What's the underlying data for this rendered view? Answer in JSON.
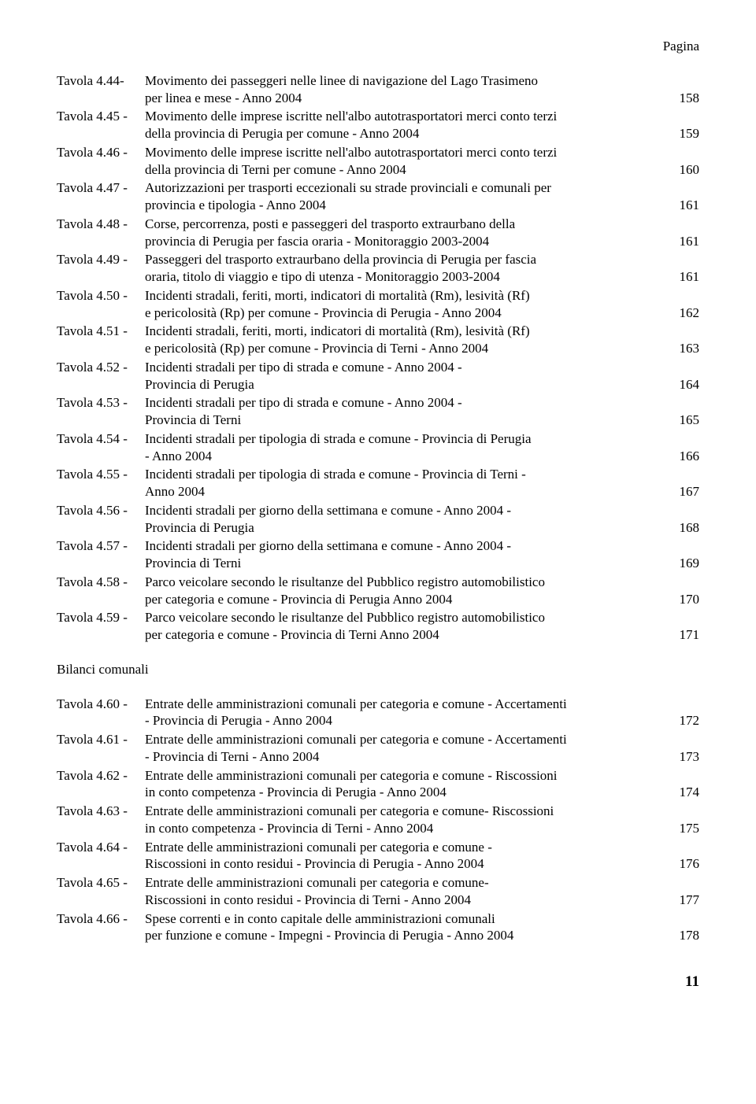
{
  "header_label": "Pagina",
  "page_number": "11",
  "section2_heading": "Bilanci comunali",
  "entries1": [
    {
      "label": "Tavola 4.44-",
      "lines": [
        {
          "text": "Movimento dei passeggeri nelle linee di navigazione del Lago Trasimeno"
        },
        {
          "text": "per linea e mese - Anno 2004",
          "page": "158"
        }
      ]
    },
    {
      "label": "Tavola 4.45 -",
      "lines": [
        {
          "text": "Movimento delle imprese iscritte nell'albo autotrasportatori merci conto terzi"
        },
        {
          "text": "della provincia di Perugia per comune - Anno 2004",
          "page": "159"
        }
      ]
    },
    {
      "label": "Tavola 4.46 -",
      "lines": [
        {
          "text": "Movimento delle imprese iscritte nell'albo autotrasportatori merci conto terzi"
        },
        {
          "text": "della provincia di Terni per comune - Anno 2004",
          "page": "160"
        }
      ]
    },
    {
      "label": "Tavola 4.47 -",
      "lines": [
        {
          "text": "Autorizzazioni per trasporti eccezionali su strade provinciali e comunali per"
        },
        {
          "text": "provincia e tipologia - Anno 2004",
          "page": "161"
        }
      ]
    },
    {
      "label": "Tavola 4.48 -",
      "lines": [
        {
          "text": "Corse, percorrenza, posti e passeggeri del trasporto extraurbano della"
        },
        {
          "text": "provincia di Perugia per fascia oraria - Monitoraggio 2003-2004",
          "page": "161"
        }
      ]
    },
    {
      "label": "Tavola 4.49 -",
      "lines": [
        {
          "text": "Passeggeri del trasporto extraurbano della provincia di Perugia per fascia"
        },
        {
          "text": "oraria, titolo di viaggio e tipo di utenza - Monitoraggio 2003-2004",
          "page": "161"
        }
      ]
    },
    {
      "label": "Tavola 4.50 -",
      "lines": [
        {
          "text": "Incidenti stradali, feriti, morti, indicatori di mortalità (Rm), lesività (Rf)"
        },
        {
          "text": "e pericolosità (Rp) per comune - Provincia di Perugia - Anno 2004",
          "page": "162"
        }
      ]
    },
    {
      "label": "Tavola 4.51 -",
      "lines": [
        {
          "text": "Incidenti stradali, feriti, morti, indicatori di mortalità (Rm), lesività (Rf)"
        },
        {
          "text": "e pericolosità (Rp) per comune - Provincia di Terni - Anno 2004",
          "page": "163"
        }
      ]
    },
    {
      "label": "Tavola 4.52 -",
      "lines": [
        {
          "text": "Incidenti stradali per tipo di strada e comune - Anno 2004 -"
        },
        {
          "text": "Provincia di Perugia",
          "page": "164"
        }
      ]
    },
    {
      "label": "Tavola 4.53 -",
      "lines": [
        {
          "text": "Incidenti stradali per tipo di strada e comune - Anno 2004 -"
        },
        {
          "text": "Provincia di Terni",
          "page": "165"
        }
      ]
    },
    {
      "label": "Tavola 4.54 -",
      "lines": [
        {
          "text": "Incidenti stradali per tipologia di strada e comune - Provincia di Perugia"
        },
        {
          "text": "- Anno 2004",
          "page": "166"
        }
      ]
    },
    {
      "label": "Tavola 4.55 -",
      "lines": [
        {
          "text": "Incidenti stradali per tipologia di strada e comune - Provincia di Terni -"
        },
        {
          "text": "Anno 2004",
          "page": "167"
        }
      ]
    },
    {
      "label": "Tavola 4.56 -",
      "lines": [
        {
          "text": "Incidenti stradali per giorno della settimana e comune - Anno 2004 -"
        },
        {
          "text": "Provincia di Perugia",
          "page": "168"
        }
      ]
    },
    {
      "label": "Tavola 4.57 -",
      "lines": [
        {
          "text": "Incidenti stradali per giorno della settimana e comune - Anno 2004 -"
        },
        {
          "text": "Provincia di Terni",
          "page": "169"
        }
      ]
    },
    {
      "label": "Tavola 4.58 -",
      "lines": [
        {
          "text": "Parco veicolare secondo le risultanze del Pubblico registro automobilistico"
        },
        {
          "text": "per categoria e comune - Provincia di Perugia Anno 2004",
          "page": "170"
        }
      ]
    },
    {
      "label": "Tavola 4.59 -",
      "lines": [
        {
          "text": "Parco veicolare secondo le risultanze del Pubblico registro automobilistico"
        },
        {
          "text": "per categoria e comune - Provincia di Terni Anno 2004",
          "page": "171"
        }
      ]
    }
  ],
  "entries2": [
    {
      "label": "Tavola 4.60 -",
      "lines": [
        {
          "text": "Entrate delle amministrazioni comunali per categoria e comune - Accertamenti"
        },
        {
          "text": "- Provincia di Perugia - Anno 2004",
          "page": "172"
        }
      ]
    },
    {
      "label": "Tavola 4.61 -",
      "lines": [
        {
          "text": "Entrate delle amministrazioni comunali per categoria e comune - Accertamenti"
        },
        {
          "text": "- Provincia di Terni - Anno 2004",
          "page": "173"
        }
      ]
    },
    {
      "label": "Tavola 4.62 -",
      "lines": [
        {
          "text": "Entrate delle amministrazioni comunali per categoria e comune - Riscossioni"
        },
        {
          "text": "in conto competenza - Provincia di Perugia - Anno 2004",
          "page": "174"
        }
      ]
    },
    {
      "label": "Tavola 4.63 -",
      "lines": [
        {
          "text": "Entrate delle amministrazioni comunali per categoria e comune- Riscossioni"
        },
        {
          "text": "in conto competenza - Provincia di Terni - Anno 2004",
          "page": "175"
        }
      ]
    },
    {
      "label": "Tavola 4.64 -",
      "lines": [
        {
          "text": "Entrate delle amministrazioni comunali per categoria e comune -"
        },
        {
          "text": "Riscossioni in conto residui - Provincia di Perugia - Anno 2004",
          "page": "176"
        }
      ]
    },
    {
      "label": "Tavola 4.65 -",
      "lines": [
        {
          "text": "Entrate delle amministrazioni comunali per categoria e comune-"
        },
        {
          "text": "Riscossioni in conto residui - Provincia di Terni - Anno 2004",
          "page": "177"
        }
      ]
    },
    {
      "label": "Tavola 4.66 -",
      "lines": [
        {
          "text": "Spese correnti e in conto capitale delle amministrazioni comunali"
        },
        {
          "text": "per funzione e comune - Impegni - Provincia di Perugia - Anno 2004",
          "page": "178"
        }
      ]
    }
  ]
}
